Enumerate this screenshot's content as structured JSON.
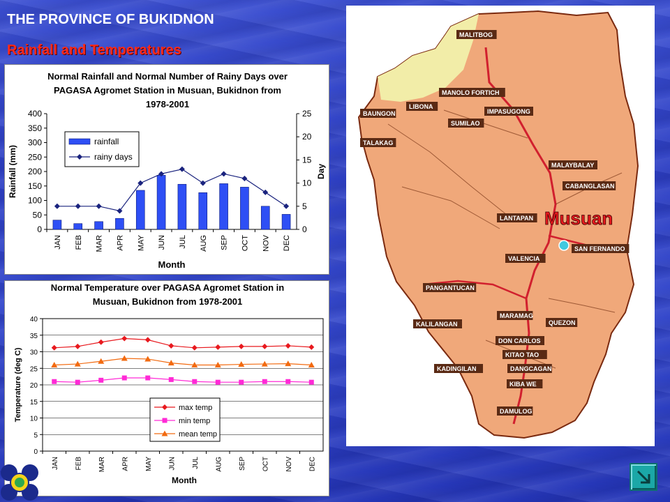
{
  "slide": {
    "title": "THE PROVINCE OF BUKIDNON",
    "subtitle": "Rainfall and Temperatures"
  },
  "colors": {
    "rain_bar": "#2e4ff5",
    "rain_line": "#1a237e",
    "max_temp": "#e8191e",
    "min_temp": "#ff2ad6",
    "mean_temp": "#f26a10",
    "map_land": "#f0a87a",
    "map_north": "#f2eda8",
    "map_border": "#7a2a10"
  },
  "chart_data": [
    {
      "type": "bar",
      "title_lines": [
        "Normal Rainfall and Normal Number of Rainy Days over",
        "PAGASA Agromet Station in Musuan, Bukidnon from",
        "1978-2001"
      ],
      "xlabel": "Month",
      "ylabel": "Rainfall (mm)",
      "y2label": "Day",
      "categories": [
        "JAN",
        "FEB",
        "MAR",
        "APR",
        "MAY",
        "JUN",
        "JUL",
        "AUG",
        "SEP",
        "OCT",
        "NOV",
        "DEC"
      ],
      "ylim": [
        0,
        400
      ],
      "yticks": [
        "0",
        "50",
        "100",
        "150",
        "200",
        "250",
        "300",
        "350",
        "400"
      ],
      "y2lim": [
        0,
        25
      ],
      "y2ticks": [
        "0",
        "5",
        "10",
        "15",
        "20",
        "25"
      ],
      "grid": false,
      "legend_position": "upper-left",
      "series": [
        {
          "name": "rainfall",
          "type": "bar",
          "axis": "left",
          "values": [
            32,
            20,
            27,
            38,
            135,
            187,
            156,
            127,
            158,
            146,
            80,
            52
          ]
        },
        {
          "name": "rainy days",
          "type": "line",
          "axis": "right",
          "marker": "diamond",
          "values": [
            5,
            5,
            5,
            4,
            10,
            12,
            13,
            10,
            12,
            11,
            8,
            5
          ]
        }
      ]
    },
    {
      "type": "line",
      "title_lines": [
        "Normal Temperature over PAGASA Agromet Station in",
        "Musuan, Bukidnon from 1978-2001"
      ],
      "xlabel": "Month",
      "ylabel": "Temperature (deg C)",
      "categories": [
        "JAN",
        "FEB",
        "MAR",
        "APR",
        "MAY",
        "JUN",
        "JUL",
        "AUG",
        "SEP",
        "OCT",
        "NOV",
        "DEC"
      ],
      "ylim": [
        0,
        40
      ],
      "yticks": [
        "0",
        "5",
        "10",
        "15",
        "20",
        "25",
        "30",
        "35",
        "40"
      ],
      "grid": true,
      "legend_position": "lower-center",
      "series": [
        {
          "name": "max temp",
          "marker": "diamond",
          "values": [
            31.2,
            31.6,
            32.9,
            34.0,
            33.6,
            31.8,
            31.2,
            31.4,
            31.6,
            31.6,
            31.8,
            31.4
          ]
        },
        {
          "name": "min temp",
          "marker": "square",
          "values": [
            21.0,
            20.8,
            21.4,
            22.1,
            22.1,
            21.6,
            21.0,
            20.8,
            20.8,
            21.0,
            21.0,
            20.8
          ]
        },
        {
          "name": "mean temp",
          "marker": "triangle",
          "values": [
            26.0,
            26.3,
            27.1,
            28.0,
            27.8,
            26.6,
            26.0,
            26.0,
            26.2,
            26.3,
            26.4,
            26.0
          ]
        }
      ]
    }
  ],
  "map": {
    "highlight_label": "Musuan",
    "places": [
      "MALITBOG",
      "MANOLO FORTICH",
      "LIBONA",
      "BAUNGON",
      "TALAKAG",
      "SUMILAO",
      "IMPASUGONG",
      "MALAYBALAY",
      "CABANGLASAN",
      "LANTAPAN",
      "SAN FERNANDO",
      "VALENCIA",
      "PANGANTUCAN",
      "MARAMAG",
      "QUEZON",
      "KALILANGAN",
      "DON CARLOS",
      "KITAO TAO",
      "KADINGILAN",
      "DANGCAGAN",
      "KIBA WE",
      "DAMULOG"
    ]
  },
  "nav": {
    "next_icon": "next-slide-arrow-icon"
  }
}
